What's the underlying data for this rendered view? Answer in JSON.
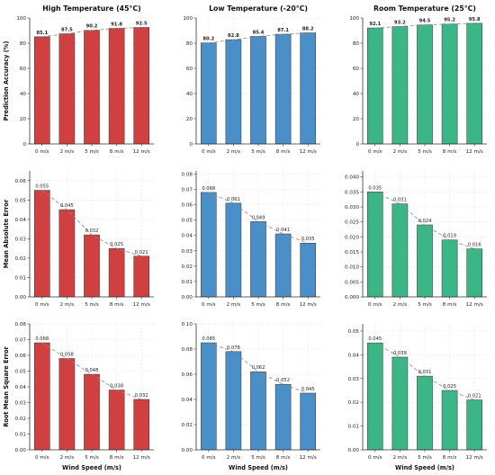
{
  "chart_data": [
    {
      "type": "bar",
      "row": 0,
      "col": 0,
      "title": "High Temperature (45°C)",
      "ylabel": "Prediction Accuracy (%)",
      "xlabel": "",
      "categories": [
        "0 m/s",
        "2 m/s",
        "5 m/s",
        "8 m/s",
        "12 m/s"
      ],
      "values": [
        85.1,
        87.5,
        90.2,
        91.8,
        92.5
      ],
      "labels": [
        "85.1",
        "87.5",
        "90.2",
        "91.8",
        "92.5"
      ],
      "ylim": [
        0,
        100
      ],
      "yticks": [
        0,
        20,
        40,
        60,
        80,
        100
      ],
      "ytick_labels": [
        "0",
        "20",
        "40",
        "60",
        "80",
        "100"
      ],
      "color": "#d14040",
      "grid": true,
      "trend_line": true,
      "bold_labels": true
    },
    {
      "type": "bar",
      "row": 0,
      "col": 1,
      "title": "Low Temperature (-20°C)",
      "ylabel": "",
      "xlabel": "",
      "categories": [
        "0 m/s",
        "2 m/s",
        "5 m/s",
        "8 m/s",
        "12 m/s"
      ],
      "values": [
        80.2,
        82.8,
        85.4,
        87.1,
        88.2
      ],
      "labels": [
        "80.2",
        "82.8",
        "85.4",
        "87.1",
        "88.2"
      ],
      "ylim": [
        0,
        100
      ],
      "yticks": [
        0,
        20,
        40,
        60,
        80,
        100
      ],
      "ytick_labels": [
        "0",
        "20",
        "40",
        "60",
        "80",
        "100"
      ],
      "color": "#4a8fc8",
      "grid": true,
      "trend_line": true,
      "bold_labels": true
    },
    {
      "type": "bar",
      "row": 0,
      "col": 2,
      "title": "Room Temperature (25°C)",
      "ylabel": "",
      "xlabel": "",
      "categories": [
        "0 m/s",
        "2 m/s",
        "5 m/s",
        "8 m/s",
        "12 m/s"
      ],
      "values": [
        92.1,
        93.2,
        94.5,
        95.2,
        95.8
      ],
      "labels": [
        "92.1",
        "93.2",
        "94.5",
        "95.2",
        "95.8"
      ],
      "ylim": [
        0,
        100
      ],
      "yticks": [
        0,
        20,
        40,
        60,
        80,
        100
      ],
      "ytick_labels": [
        "0",
        "20",
        "40",
        "60",
        "80",
        "100"
      ],
      "color": "#3cb587",
      "grid": true,
      "trend_line": true,
      "bold_labels": true
    },
    {
      "type": "bar",
      "row": 1,
      "col": 0,
      "title": "",
      "ylabel": "Mean Absolute Error",
      "xlabel": "",
      "categories": [
        "0 m/s",
        "2 m/s",
        "5 m/s",
        "8 m/s",
        "12 m/s"
      ],
      "values": [
        0.055,
        0.045,
        0.032,
        0.025,
        0.021
      ],
      "labels": [
        "0.055",
        "0.045",
        "0.032",
        "0.025",
        "0.021"
      ],
      "ylim": [
        0,
        0.065
      ],
      "yticks": [
        0,
        0.01,
        0.02,
        0.03,
        0.04,
        0.05,
        0.06
      ],
      "ytick_labels": [
        "0.00",
        "0.01",
        "0.02",
        "0.03",
        "0.04",
        "0.05",
        "0.06"
      ],
      "color": "#d14040",
      "grid": true,
      "trend_line": true,
      "bold_labels": false
    },
    {
      "type": "bar",
      "row": 1,
      "col": 1,
      "title": "",
      "ylabel": "",
      "xlabel": "",
      "categories": [
        "0 m/s",
        "2 m/s",
        "5 m/s",
        "8 m/s",
        "12 m/s"
      ],
      "values": [
        0.068,
        0.061,
        0.049,
        0.041,
        0.035
      ],
      "labels": [
        "0.068",
        "0.061",
        "0.049",
        "0.041",
        "0.035"
      ],
      "ylim": [
        0,
        0.082
      ],
      "yticks": [
        0,
        0.01,
        0.02,
        0.03,
        0.04,
        0.05,
        0.06,
        0.07,
        0.08
      ],
      "ytick_labels": [
        "0.00",
        "0.01",
        "0.02",
        "0.03",
        "0.04",
        "0.05",
        "0.06",
        "0.07",
        "0.08"
      ],
      "color": "#4a8fc8",
      "grid": true,
      "trend_line": true,
      "bold_labels": false
    },
    {
      "type": "bar",
      "row": 1,
      "col": 2,
      "title": "",
      "ylabel": "",
      "xlabel": "",
      "categories": [
        "0 m/s",
        "2 m/s",
        "5 m/s",
        "8 m/s",
        "12 m/s"
      ],
      "values": [
        0.035,
        0.031,
        0.024,
        0.019,
        0.016
      ],
      "labels": [
        "0.035",
        "0.031",
        "0.024",
        "0.019",
        "0.016"
      ],
      "ylim": [
        0,
        0.042
      ],
      "yticks": [
        0,
        0.005,
        0.01,
        0.015,
        0.02,
        0.025,
        0.03,
        0.035,
        0.04
      ],
      "ytick_labels": [
        "0.000",
        "0.005",
        "0.010",
        "0.015",
        "0.020",
        "0.025",
        "0.030",
        "0.035",
        "0.040"
      ],
      "color": "#3cb587",
      "grid": true,
      "trend_line": true,
      "bold_labels": false
    },
    {
      "type": "bar",
      "row": 2,
      "col": 0,
      "title": "",
      "ylabel": "Root Mean Square Error",
      "xlabel": "Wind Speed (m/s)",
      "categories": [
        "0 m/s",
        "2 m/s",
        "5 m/s",
        "8 m/s",
        "12 m/s"
      ],
      "values": [
        0.068,
        0.058,
        0.048,
        0.038,
        0.032
      ],
      "labels": [
        "0.068",
        "0.058",
        "0.048",
        "0.038",
        "0.032"
      ],
      "ylim": [
        0,
        0.08
      ],
      "yticks": [
        0,
        0.01,
        0.02,
        0.03,
        0.04,
        0.05,
        0.06,
        0.07,
        0.08
      ],
      "ytick_labels": [
        "0.00",
        "0.01",
        "0.02",
        "0.03",
        "0.04",
        "0.05",
        "0.06",
        "0.07",
        "0.08"
      ],
      "color": "#d14040",
      "grid": true,
      "trend_line": true,
      "bold_labels": false
    },
    {
      "type": "bar",
      "row": 2,
      "col": 1,
      "title": "",
      "ylabel": "",
      "xlabel": "Wind Speed (m/s)",
      "categories": [
        "0 m/s",
        "2 m/s",
        "5 m/s",
        "8 m/s",
        "12 m/s"
      ],
      "values": [
        0.085,
        0.078,
        0.062,
        0.052,
        0.045
      ],
      "labels": [
        "0.085",
        "0.078",
        "0.062",
        "0.052",
        "0.045"
      ],
      "ylim": [
        0,
        0.1
      ],
      "yticks": [
        0,
        0.02,
        0.04,
        0.06,
        0.08,
        0.1
      ],
      "ytick_labels": [
        "0.00",
        "0.02",
        "0.04",
        "0.06",
        "0.08",
        "0.10"
      ],
      "color": "#4a8fc8",
      "grid": true,
      "trend_line": true,
      "bold_labels": false
    },
    {
      "type": "bar",
      "row": 2,
      "col": 2,
      "title": "",
      "ylabel": "",
      "xlabel": "Wind Speed (m/s)",
      "categories": [
        "0 m/s",
        "2 m/s",
        "5 m/s",
        "8 m/s",
        "12 m/s"
      ],
      "values": [
        0.045,
        0.039,
        0.031,
        0.025,
        0.021
      ],
      "labels": [
        "0.045",
        "0.039",
        "0.031",
        "0.025",
        "0.021"
      ],
      "ylim": [
        0,
        0.053
      ],
      "yticks": [
        0,
        0.01,
        0.02,
        0.03,
        0.04,
        0.05
      ],
      "ytick_labels": [
        "0.00",
        "0.01",
        "0.02",
        "0.03",
        "0.04",
        "0.05"
      ],
      "color": "#3cb587",
      "grid": true,
      "trend_line": true,
      "bold_labels": false
    }
  ]
}
